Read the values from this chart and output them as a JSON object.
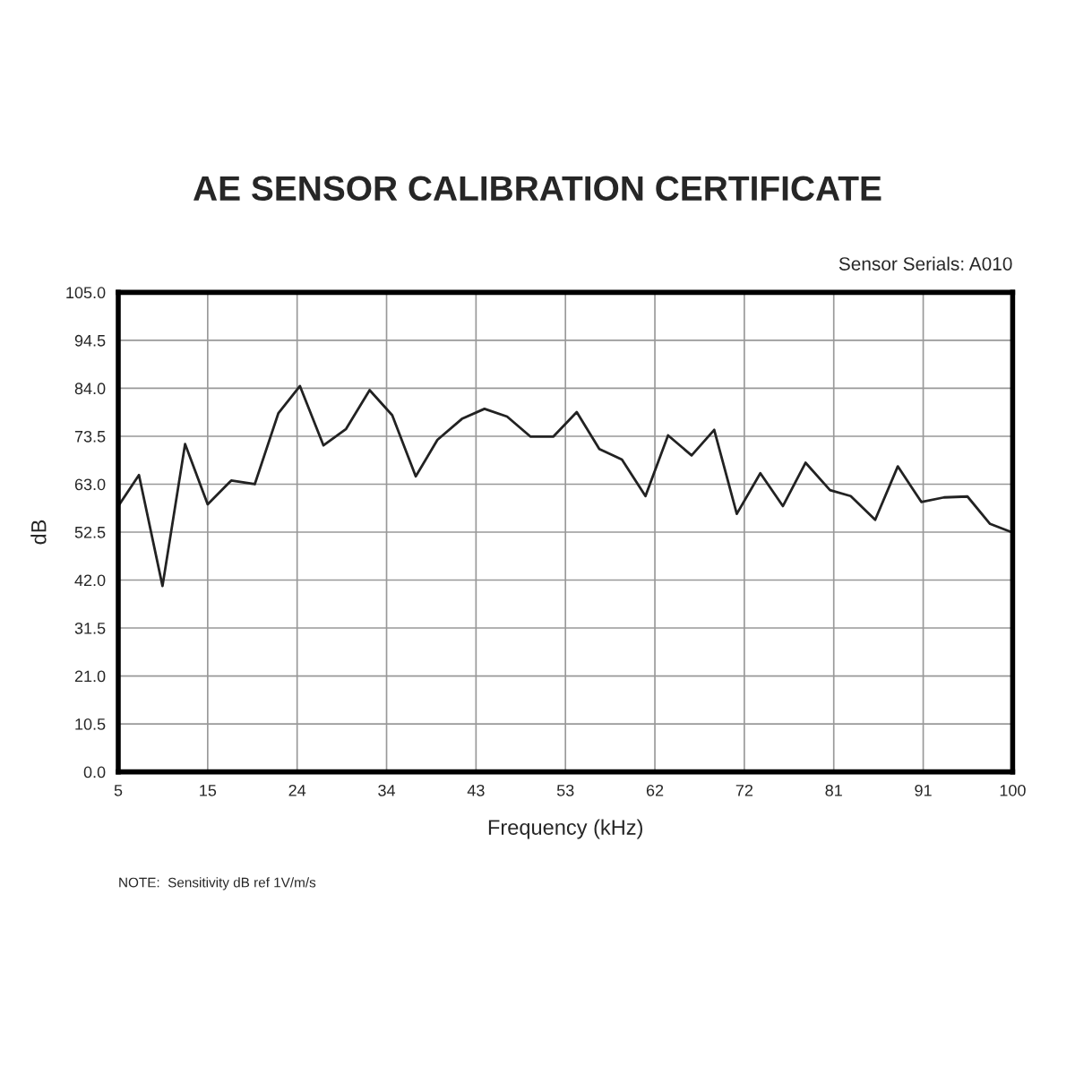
{
  "chart_data": {
    "type": "line",
    "title": "AE SENSOR CALIBRATION CERTIFICATE",
    "xlabel": "Frequency (kHz)",
    "ylabel": "dB",
    "annotations": [
      "Sensor Serials: A010",
      "NOTE:  Sensitivity dB ref 1V/m/s"
    ],
    "x": [
      5,
      7.2,
      9.7,
      12.1,
      14.5,
      17.0,
      19.5,
      22.0,
      24.3,
      26.8,
      29.2,
      31.7,
      34.1,
      36.6,
      38.9,
      41.5,
      43.9,
      46.3,
      48.8,
      51.2,
      53.7,
      56.1,
      58.5,
      61.0,
      63.4,
      65.9,
      68.3,
      70.7,
      73.2,
      75.6,
      78.0,
      80.6,
      82.8,
      85.4,
      87.8,
      90.3,
      92.7,
      95.2,
      97.6,
      100
    ],
    "series": [
      {
        "color": "#222222",
        "values": [
          58.2,
          65.0,
          40.7,
          71.8,
          58.6,
          63.8,
          63.0,
          78.5,
          84.5,
          71.5,
          75.1,
          83.6,
          78.1,
          64.7,
          72.7,
          77.3,
          79.5,
          77.8,
          73.4,
          73.4,
          78.8,
          70.7,
          68.4,
          60.4,
          73.7,
          69.3,
          74.9,
          56.5,
          65.4,
          58.2,
          67.7,
          61.7,
          60.4,
          55.2,
          66.9,
          59.1,
          60.1,
          60.3,
          54.3,
          52.4
        ]
      }
    ],
    "xlim": [
      5,
      100
    ],
    "xticks": [
      5,
      {
        "value": 14.5,
        "label": "15"
      },
      24,
      {
        "value": 33.5,
        "label": "34"
      },
      43,
      {
        "value": 52.5,
        "label": "53"
      },
      62,
      {
        "value": 71.5,
        "label": "72"
      },
      81,
      {
        "value": 90.5,
        "label": "91"
      },
      100
    ],
    "ylim": [
      0,
      105
    ],
    "yticks": [
      {
        "value": 0,
        "label": "0.0"
      },
      10.5,
      {
        "value": 21,
        "label": "21.0"
      },
      31.5,
      {
        "value": 42,
        "label": "42.0"
      },
      52.5,
      {
        "value": 63,
        "label": "63.0"
      },
      73.5,
      {
        "value": 84,
        "label": "84.0"
      },
      94.5,
      {
        "value": 105,
        "label": "105.0"
      }
    ],
    "grid": true,
    "marker": "none",
    "line_style": "solid"
  }
}
